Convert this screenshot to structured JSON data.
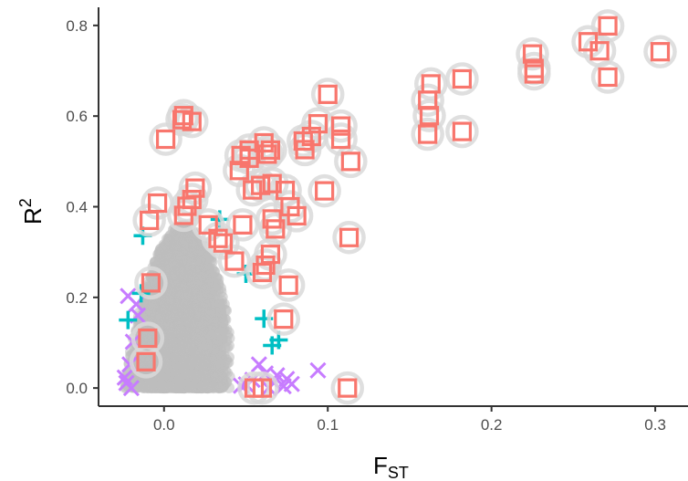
{
  "chart_data": {
    "type": "scatter",
    "xlabel": {
      "main": "F",
      "sub": "ST"
    },
    "ylabel": {
      "main": "R",
      "sup": "2"
    },
    "xlim": [
      -0.04,
      0.32
    ],
    "ylim": [
      -0.04,
      0.84
    ],
    "xticks": [
      0.0,
      0.1,
      0.2,
      0.3
    ],
    "xtick_labels": [
      "0.0",
      "0.1",
      "0.2",
      "0.3"
    ],
    "yticks": [
      0.0,
      0.2,
      0.4,
      0.6,
      0.8
    ],
    "ytick_labels": [
      "0.0",
      "0.2",
      "0.4",
      "0.6",
      "0.8"
    ],
    "grid": false,
    "legend": "none",
    "colors": {
      "squares": "#F8766D",
      "halo": "#D9D9D9",
      "crosses": "#C77CFF",
      "plus": "#00BFC4",
      "cloud": "#BEBEBE",
      "axis": "#333333"
    },
    "series": [
      {
        "marker": "square",
        "color": "#F8766D",
        "points": [
          [
            0.303,
            0.742
          ],
          [
            0.271,
            0.799
          ],
          [
            0.271,
            0.686
          ],
          [
            0.266,
            0.744
          ],
          [
            0.259,
            0.764
          ],
          [
            0.225,
            0.737
          ],
          [
            0.226,
            0.705
          ],
          [
            0.226,
            0.693
          ],
          [
            0.182,
            0.682
          ],
          [
            0.182,
            0.566
          ],
          [
            0.163,
            0.671
          ],
          [
            0.161,
            0.635
          ],
          [
            0.162,
            0.601
          ],
          [
            0.161,
            0.56
          ],
          [
            0.1,
            0.648
          ],
          [
            0.108,
            0.578
          ],
          [
            0.108,
            0.549
          ],
          [
            0.114,
            0.5
          ],
          [
            0.098,
            0.435
          ],
          [
            0.113,
            0.332
          ],
          [
            0.112,
            0.0
          ],
          [
            0.094,
            0.583
          ],
          [
            0.09,
            0.555
          ],
          [
            0.086,
            0.526
          ],
          [
            0.085,
            0.545
          ],
          [
            0.081,
            0.38
          ],
          [
            0.076,
            0.227
          ],
          [
            0.073,
            0.152
          ],
          [
            0.074,
            0.436
          ],
          [
            0.077,
            0.4
          ],
          [
            0.068,
            0.351
          ],
          [
            0.066,
            0.373
          ],
          [
            0.065,
            0.295
          ],
          [
            0.062,
            0.271
          ],
          [
            0.06,
            0.255
          ],
          [
            0.061,
            0.541
          ],
          [
            0.063,
            0.516
          ],
          [
            0.065,
            0.525
          ],
          [
            0.066,
            0.451
          ],
          [
            0.059,
            0.447
          ],
          [
            0.054,
            0.437
          ],
          [
            0.052,
            0.525
          ],
          [
            0.052,
            0.507
          ],
          [
            0.047,
            0.513
          ],
          [
            0.046,
            0.48
          ],
          [
            0.06,
            0.0
          ],
          [
            0.055,
            0.0
          ],
          [
            0.017,
            0.588
          ],
          [
            0.012,
            0.601
          ],
          [
            0.011,
            0.592
          ],
          [
            0.001,
            0.549
          ],
          [
            0.019,
            0.441
          ],
          [
            0.017,
            0.416
          ],
          [
            0.014,
            0.401
          ],
          [
            0.012,
            0.381
          ],
          [
            -0.004,
            0.408
          ],
          [
            -0.009,
            0.37
          ],
          [
            -0.008,
            0.232
          ],
          [
            -0.01,
            0.11
          ],
          [
            -0.011,
            0.058
          ],
          [
            0.043,
            0.28
          ],
          [
            0.036,
            0.32
          ],
          [
            0.048,
            0.36
          ],
          [
            0.027,
            0.36
          ],
          [
            0.033,
            0.33
          ]
        ]
      },
      {
        "marker": "cross",
        "color": "#C77CFF",
        "points": [
          [
            -0.022,
            0.203
          ],
          [
            -0.017,
            0.185
          ],
          [
            -0.016,
            0.16
          ],
          [
            -0.019,
            0.102
          ],
          [
            -0.021,
            0.052
          ],
          [
            -0.024,
            0.023
          ],
          [
            -0.023,
            0.011
          ],
          [
            -0.02,
            0.0
          ],
          [
            0.094,
            0.039
          ],
          [
            0.078,
            0.009
          ],
          [
            0.075,
            0.02
          ],
          [
            0.073,
            0.004
          ],
          [
            0.069,
            0.028
          ],
          [
            0.067,
            0.012
          ],
          [
            0.064,
            0.0
          ],
          [
            0.062,
            0.032
          ],
          [
            0.058,
            0.052
          ],
          [
            0.054,
            0.018
          ],
          [
            0.05,
            0.008
          ],
          [
            0.047,
            0.005
          ]
        ]
      },
      {
        "marker": "plus",
        "color": "#00BFC4",
        "points": [
          [
            0.07,
            0.106
          ],
          [
            0.066,
            0.094
          ],
          [
            0.061,
            0.153
          ],
          [
            0.05,
            0.252
          ],
          [
            0.034,
            0.372
          ],
          [
            -0.013,
            0.336
          ],
          [
            -0.022,
            0.15
          ],
          [
            -0.014,
            0.209
          ]
        ]
      }
    ]
  }
}
